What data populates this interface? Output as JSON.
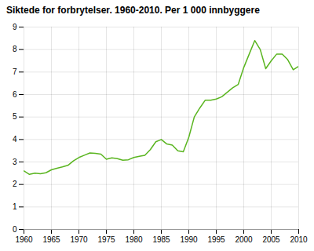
{
  "chart_data": {
    "type": "line",
    "title": "Siktede for forbrytelser. 1960-2010. Per 1 000 innbyggere",
    "x": [
      1960,
      1961,
      1962,
      1963,
      1964,
      1965,
      1966,
      1967,
      1968,
      1969,
      1970,
      1971,
      1972,
      1973,
      1974,
      1975,
      1976,
      1977,
      1978,
      1979,
      1980,
      1981,
      1982,
      1983,
      1984,
      1985,
      1986,
      1987,
      1988,
      1989,
      1990,
      1991,
      1992,
      1993,
      1994,
      1995,
      1996,
      1997,
      1998,
      1999,
      2000,
      2001,
      2002,
      2003,
      2004,
      2005,
      2006,
      2007,
      2008,
      2009,
      2010
    ],
    "values": [
      2.6,
      2.45,
      2.5,
      2.48,
      2.52,
      2.65,
      2.72,
      2.78,
      2.85,
      3.05,
      3.2,
      3.3,
      3.4,
      3.38,
      3.35,
      3.12,
      3.18,
      3.15,
      3.08,
      3.1,
      3.2,
      3.25,
      3.3,
      3.55,
      3.9,
      4.0,
      3.8,
      3.75,
      3.5,
      3.45,
      4.1,
      5.0,
      5.4,
      5.75,
      5.75,
      5.8,
      5.9,
      6.1,
      6.3,
      6.45,
      7.2,
      7.8,
      8.4,
      8.0,
      7.15,
      7.5,
      7.8,
      7.8,
      7.55,
      7.1,
      7.25
    ],
    "color": "#5ab520",
    "xlim": [
      1960,
      2010
    ],
    "ylim": [
      0,
      9
    ],
    "xticks": [
      1960,
      1965,
      1970,
      1975,
      1980,
      1985,
      1990,
      1995,
      2000,
      2005,
      2010
    ],
    "yticks": [
      0,
      1,
      2,
      3,
      4,
      5,
      6,
      7,
      8,
      9
    ],
    "grid": true
  }
}
